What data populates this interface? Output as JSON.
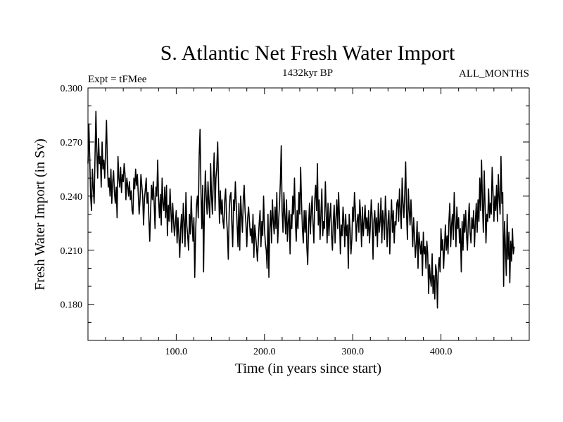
{
  "chart_data": {
    "type": "line",
    "title": "S. Atlantic Net Fresh Water Import",
    "left_note": "Expt = tFMee",
    "center_note": "1432kyr BP",
    "right_note": "ALL_MONTHS",
    "xlabel": "Time (in years since start)",
    "ylabel": "Fresh Water Import (in Sv)",
    "xlim": [
      0,
      500
    ],
    "ylim": [
      0.16,
      0.3
    ],
    "x_ticks": [
      100,
      200,
      300,
      400
    ],
    "x_tick_labels": [
      "100.0",
      "200.0",
      "300.0",
      "400.0"
    ],
    "y_ticks": [
      0.18,
      0.21,
      0.24,
      0.27,
      0.3
    ],
    "y_tick_labels": [
      "0.180",
      "0.210",
      "0.240",
      "0.270",
      "0.300"
    ],
    "series": [
      {
        "name": "Net Fresh Water Import",
        "color": "#000000",
        "x_start": 0,
        "x_step": 1,
        "values": [
          0.258,
          0.28,
          0.262,
          0.24,
          0.232,
          0.255,
          0.244,
          0.236,
          0.262,
          0.287,
          0.265,
          0.25,
          0.272,
          0.258,
          0.262,
          0.245,
          0.27,
          0.255,
          0.26,
          0.25,
          0.266,
          0.282,
          0.258,
          0.245,
          0.25,
          0.24,
          0.255,
          0.236,
          0.248,
          0.254,
          0.242,
          0.236,
          0.245,
          0.228,
          0.262,
          0.25,
          0.245,
          0.256,
          0.242,
          0.252,
          0.248,
          0.258,
          0.252,
          0.238,
          0.25,
          0.246,
          0.24,
          0.248,
          0.238,
          0.243,
          0.232,
          0.23,
          0.25,
          0.244,
          0.255,
          0.246,
          0.252,
          0.241,
          0.23,
          0.238,
          0.252,
          0.246,
          0.24,
          0.224,
          0.238,
          0.244,
          0.25,
          0.236,
          0.242,
          0.228,
          0.215,
          0.232,
          0.246,
          0.238,
          0.248,
          0.236,
          0.222,
          0.245,
          0.24,
          0.26,
          0.238,
          0.228,
          0.241,
          0.224,
          0.25,
          0.236,
          0.232,
          0.245,
          0.228,
          0.246,
          0.218,
          0.235,
          0.226,
          0.244,
          0.232,
          0.22,
          0.236,
          0.226,
          0.218,
          0.225,
          0.232,
          0.214,
          0.228,
          0.218,
          0.206,
          0.222,
          0.23,
          0.214,
          0.236,
          0.226,
          0.212,
          0.242,
          0.224,
          0.218,
          0.21,
          0.23,
          0.219,
          0.24,
          0.225,
          0.215,
          0.228,
          0.195,
          0.22,
          0.235,
          0.24,
          0.228,
          0.262,
          0.277,
          0.244,
          0.222,
          0.246,
          0.198,
          0.235,
          0.254,
          0.24,
          0.23,
          0.248,
          0.236,
          0.228,
          0.258,
          0.24,
          0.23,
          0.25,
          0.264,
          0.232,
          0.25,
          0.256,
          0.27,
          0.246,
          0.225,
          0.243,
          0.23,
          0.238,
          0.226,
          0.222,
          0.238,
          0.244,
          0.228,
          0.22,
          0.205,
          0.231,
          0.24,
          0.242,
          0.225,
          0.212,
          0.238,
          0.232,
          0.248,
          0.236,
          0.224,
          0.212,
          0.236,
          0.21,
          0.24,
          0.23,
          0.22,
          0.238,
          0.246,
          0.232,
          0.225,
          0.212,
          0.228,
          0.234,
          0.226,
          0.218,
          0.222,
          0.214,
          0.23,
          0.206,
          0.224,
          0.218,
          0.212,
          0.204,
          0.215,
          0.225,
          0.232,
          0.212,
          0.226,
          0.218,
          0.24,
          0.222,
          0.214,
          0.21,
          0.2,
          0.23,
          0.195,
          0.222,
          0.232,
          0.214,
          0.238,
          0.226,
          0.219,
          0.234,
          0.222,
          0.242,
          0.214,
          0.226,
          0.235,
          0.248,
          0.268,
          0.232,
          0.22,
          0.242,
          0.23,
          0.219,
          0.238,
          0.215,
          0.226,
          0.232,
          0.208,
          0.23,
          0.222,
          0.24,
          0.23,
          0.25,
          0.226,
          0.215,
          0.232,
          0.222,
          0.242,
          0.23,
          0.256,
          0.236,
          0.222,
          0.214,
          0.232,
          0.22,
          0.232,
          0.212,
          0.202,
          0.224,
          0.236,
          0.219,
          0.232,
          0.24,
          0.225,
          0.214,
          0.238,
          0.246,
          0.232,
          0.258,
          0.224,
          0.238,
          0.216,
          0.23,
          0.244,
          0.218,
          0.226,
          0.222,
          0.248,
          0.231,
          0.214,
          0.236,
          0.218,
          0.228,
          0.236,
          0.219,
          0.21,
          0.226,
          0.235,
          0.214,
          0.228,
          0.238,
          0.222,
          0.242,
          0.228,
          0.208,
          0.224,
          0.218,
          0.234,
          0.226,
          0.212,
          0.23,
          0.218,
          0.224,
          0.2,
          0.23,
          0.222,
          0.208,
          0.216,
          0.234,
          0.226,
          0.242,
          0.232,
          0.215,
          0.226,
          0.23,
          0.22,
          0.238,
          0.228,
          0.212,
          0.234,
          0.218,
          0.226,
          0.235,
          0.222,
          0.228,
          0.218,
          0.232,
          0.214,
          0.224,
          0.238,
          0.228,
          0.205,
          0.226,
          0.232,
          0.218,
          0.228,
          0.212,
          0.236,
          0.22,
          0.226,
          0.239,
          0.214,
          0.232,
          0.226,
          0.216,
          0.24,
          0.228,
          0.212,
          0.226,
          0.232,
          0.208,
          0.225,
          0.238,
          0.22,
          0.232,
          0.214,
          0.226,
          0.224,
          0.236,
          0.238,
          0.226,
          0.244,
          0.232,
          0.222,
          0.25,
          0.236,
          0.228,
          0.242,
          0.259,
          0.23,
          0.216,
          0.244,
          0.232,
          0.224,
          0.238,
          0.226,
          0.212,
          0.228,
          0.218,
          0.206,
          0.214,
          0.226,
          0.2,
          0.22,
          0.214,
          0.208,
          0.215,
          0.196,
          0.22,
          0.208,
          0.212,
          0.2,
          0.215,
          0.208,
          0.186,
          0.202,
          0.194,
          0.19,
          0.208,
          0.186,
          0.196,
          0.183,
          0.202,
          0.198,
          0.178,
          0.2,
          0.206,
          0.198,
          0.222,
          0.21,
          0.216,
          0.2,
          0.212,
          0.224,
          0.21,
          0.218,
          0.208,
          0.226,
          0.236,
          0.212,
          0.224,
          0.23,
          0.216,
          0.242,
          0.226,
          0.212,
          0.234,
          0.222,
          0.228,
          0.214,
          0.222,
          0.198,
          0.226,
          0.21,
          0.23,
          0.22,
          0.232,
          0.218,
          0.21,
          0.226,
          0.236,
          0.22,
          0.214,
          0.228,
          0.222,
          0.232,
          0.212,
          0.226,
          0.236,
          0.22,
          0.238,
          0.226,
          0.25,
          0.232,
          0.26,
          0.236,
          0.22,
          0.254,
          0.234,
          0.214,
          0.23,
          0.226,
          0.244,
          0.228,
          0.236,
          0.23,
          0.256,
          0.242,
          0.226,
          0.24,
          0.232,
          0.246,
          0.226,
          0.252,
          0.238,
          0.23,
          0.262,
          0.236,
          0.242,
          0.19,
          0.226,
          0.212,
          0.196,
          0.23,
          0.205,
          0.22,
          0.192,
          0.215,
          0.204,
          0.222,
          0.208,
          0.212
        ]
      }
    ]
  }
}
